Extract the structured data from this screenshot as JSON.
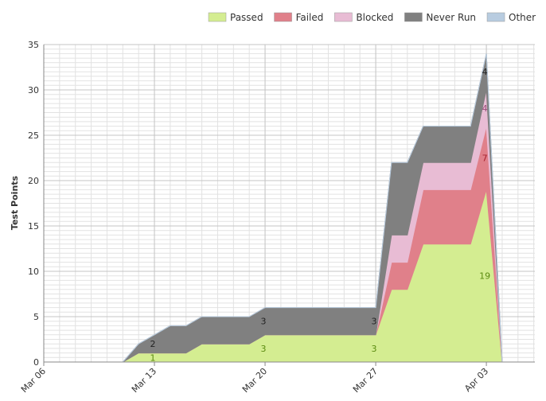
{
  "chart_data": {
    "type": "area",
    "stacked": true,
    "y_label": "Test Points",
    "categories": [
      "Mar 06",
      null,
      null,
      null,
      null,
      null,
      null,
      "Mar 13",
      null,
      null,
      null,
      null,
      null,
      null,
      "Mar 20",
      null,
      null,
      null,
      null,
      null,
      null,
      "Mar 27",
      null,
      null,
      null,
      null,
      null,
      null,
      "Apr 03",
      null
    ],
    "series": [
      {
        "name": "Passed",
        "color": "#d4ed91",
        "values": [
          0,
          0,
          0,
          0,
          0,
          0,
          1,
          1,
          1,
          1,
          2,
          2,
          2,
          2,
          3,
          3,
          3,
          3,
          3,
          3,
          3,
          3,
          8,
          8,
          13,
          13,
          13,
          13,
          19,
          0
        ]
      },
      {
        "name": "Failed",
        "color": "#e0808a",
        "values": [
          0,
          0,
          0,
          0,
          0,
          0,
          0,
          0,
          0,
          0,
          0,
          0,
          0,
          0,
          0,
          0,
          0,
          0,
          0,
          0,
          0,
          0,
          3,
          3,
          6,
          6,
          6,
          6,
          7,
          0
        ]
      },
      {
        "name": "Blocked",
        "color": "#e8bcd4",
        "values": [
          0,
          0,
          0,
          0,
          0,
          0,
          0,
          0,
          0,
          0,
          0,
          0,
          0,
          0,
          0,
          0,
          0,
          0,
          0,
          0,
          0,
          0,
          3,
          3,
          3,
          3,
          3,
          3,
          4,
          0
        ]
      },
      {
        "name": "Never Run",
        "color": "#808080",
        "values": [
          0,
          0,
          0,
          0,
          0,
          0,
          1,
          2,
          3,
          3,
          3,
          3,
          3,
          3,
          3,
          3,
          3,
          3,
          3,
          3,
          3,
          3,
          8,
          8,
          4,
          4,
          4,
          4,
          4,
          0
        ]
      },
      {
        "name": "Other",
        "color": "#b8cce0",
        "values": [
          0,
          0,
          0,
          0,
          0,
          0,
          0,
          0,
          0,
          0,
          0,
          0,
          0,
          0,
          0,
          0,
          0,
          0,
          0,
          0,
          0,
          0,
          0,
          0,
          0,
          0,
          0,
          0,
          0,
          0
        ]
      }
    ],
    "ylim": [
      0,
      35
    ],
    "yticks": [
      0,
      5,
      10,
      15,
      20,
      25,
      30,
      35
    ],
    "grid": true,
    "legend": "top"
  }
}
